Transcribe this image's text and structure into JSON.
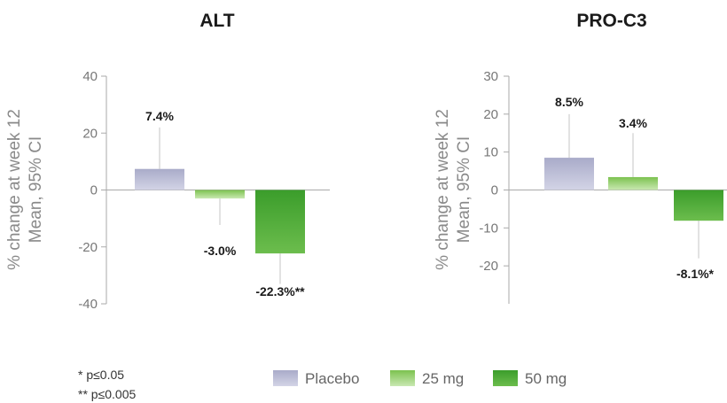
{
  "chart_data": [
    {
      "type": "bar",
      "title": "ALT",
      "ylabel": "% change at week 12\nMean, 95% CI",
      "ylim": [
        -40,
        40
      ],
      "yticks": [
        40,
        20,
        0,
        -20,
        -40
      ],
      "categories": [
        "Placebo",
        "25 mg",
        "50 mg"
      ],
      "values": [
        7.4,
        -3.0,
        -22.3
      ],
      "ci_upper": [
        22,
        null,
        null
      ],
      "ci_lower": [
        null,
        -12.3,
        -33
      ],
      "data_labels": [
        "7.4%",
        "-3.0%",
        "-22.3%**"
      ]
    },
    {
      "type": "bar",
      "title": "PRO-C3",
      "ylabel": "% change at week 12\nMean, 95% CI",
      "ylim": [
        -30,
        30
      ],
      "yticks": [
        30,
        20,
        10,
        0,
        -10,
        -20
      ],
      "categories": [
        "Placebo",
        "25 mg",
        "50 mg"
      ],
      "values": [
        8.5,
        3.4,
        -8.1
      ],
      "ci_upper": [
        20,
        15,
        null
      ],
      "ci_lower": [
        null,
        null,
        -18
      ],
      "data_labels": [
        "8.5%",
        "3.4%",
        "-8.1%*"
      ]
    }
  ],
  "legend": [
    {
      "label": "Placebo",
      "color_top": "#a9abc9",
      "color_bottom": "#d3d4e6"
    },
    {
      "label": "25 mg",
      "color_top": "#7cc24f",
      "color_bottom": "#c9e8b2"
    },
    {
      "label": "50 mg",
      "color_top": "#3b9d2b",
      "color_bottom": "#6cbd4d"
    }
  ],
  "footnotes": [
    "* p≤0.05",
    "** p≤0.005"
  ]
}
